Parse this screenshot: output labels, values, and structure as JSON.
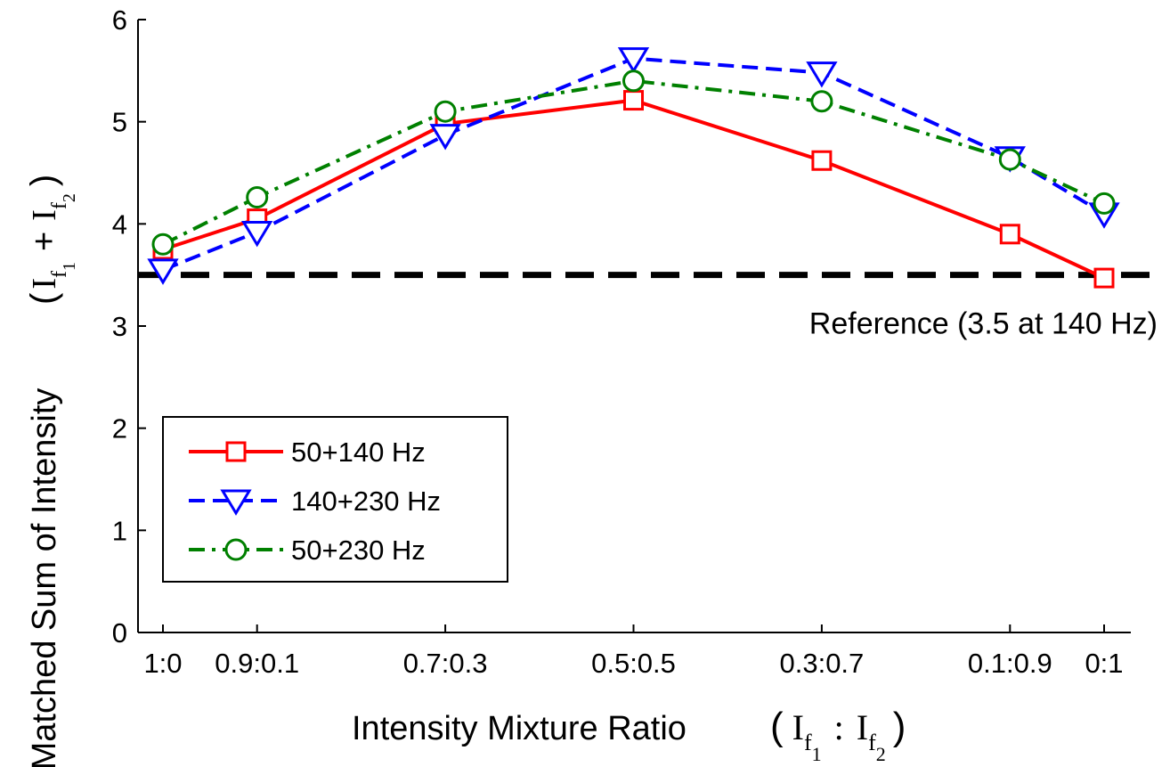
{
  "chart_data": {
    "type": "line",
    "categories": [
      "1:0",
      "0.9:0.1",
      "0.7:0.3",
      "0.5:0.5",
      "0.3:0.7",
      "0.1:0.9",
      "0:1"
    ],
    "x": [
      1.0,
      0.9,
      0.7,
      0.5,
      0.3,
      0.1,
      0.0
    ],
    "xlabel": "Intensity Mixture Ratio",
    "xlabel_math": {
      "I": "I",
      "sub1": "f",
      "sub1b": "1",
      "colon": ":",
      "sub2": "f",
      "sub2b": "2"
    },
    "ylabel": "Matched Sum of Intensity",
    "ylabel_math": {
      "I": "I",
      "plus": "+",
      "sub_f": "f",
      "sub1": "1",
      "sub2": "2"
    },
    "ylim": [
      0,
      6
    ],
    "yticks": [
      "0",
      "1",
      "2",
      "3",
      "4",
      "5",
      "6"
    ],
    "reference": {
      "value": 3.5,
      "label": "Reference (3.5 at 140 Hz)",
      "color": "#000000"
    },
    "series": [
      {
        "name": "50+140 Hz",
        "values": [
          3.75,
          4.05,
          4.98,
          5.21,
          4.62,
          3.9,
          3.47
        ],
        "color": "#ff0000",
        "marker": "square",
        "dash": "solid"
      },
      {
        "name": "140+230 Hz",
        "values": [
          3.55,
          3.92,
          4.87,
          5.62,
          5.48,
          4.65,
          4.1
        ],
        "color": "#0000ff",
        "marker": "triangle-down",
        "dash": "dashed"
      },
      {
        "name": "50+230 Hz",
        "values": [
          3.8,
          4.26,
          5.1,
          5.4,
          5.2,
          4.63,
          4.2
        ],
        "color": "#008000",
        "marker": "circle",
        "dash": "dashdot"
      }
    ],
    "legend_position": "lower-left",
    "grid": false
  }
}
